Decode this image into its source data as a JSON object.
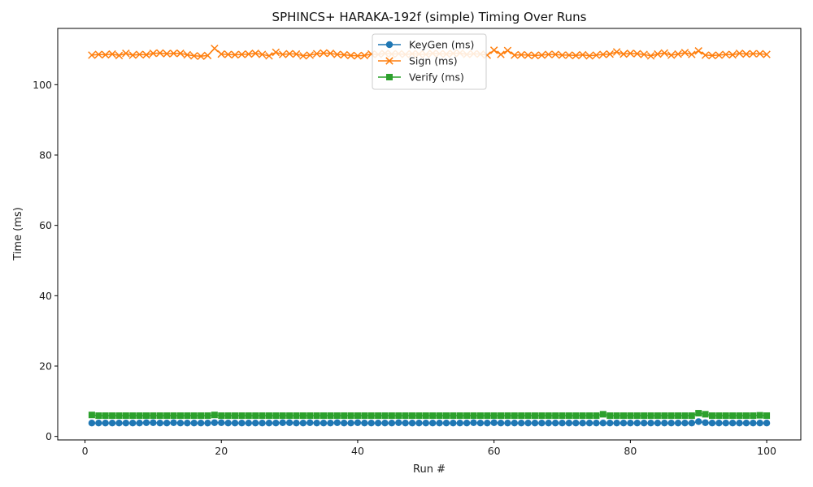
{
  "chart_data": {
    "type": "line",
    "title": "SPHINCS+ HARAKA-192f (simple) Timing Over Runs",
    "xlabel": "Run #",
    "ylabel": "Time (ms)",
    "xlim": [
      -4,
      105
    ],
    "ylim": [
      -1,
      116
    ],
    "xticks": [
      0,
      20,
      40,
      60,
      80,
      100
    ],
    "yticks": [
      0,
      20,
      40,
      60,
      80,
      100
    ],
    "grid": false,
    "legend_position": "top-center",
    "x": [
      1,
      2,
      3,
      4,
      5,
      6,
      7,
      8,
      9,
      10,
      11,
      12,
      13,
      14,
      15,
      16,
      17,
      18,
      19,
      20,
      21,
      22,
      23,
      24,
      25,
      26,
      27,
      28,
      29,
      30,
      31,
      32,
      33,
      34,
      35,
      36,
      37,
      38,
      39,
      40,
      41,
      42,
      43,
      44,
      45,
      46,
      47,
      48,
      49,
      50,
      51,
      52,
      53,
      54,
      55,
      56,
      57,
      58,
      59,
      60,
      61,
      62,
      63,
      64,
      65,
      66,
      67,
      68,
      69,
      70,
      71,
      72,
      73,
      74,
      75,
      76,
      77,
      78,
      79,
      80,
      81,
      82,
      83,
      84,
      85,
      86,
      87,
      88,
      89,
      90,
      91,
      92,
      93,
      94,
      95,
      96,
      97,
      98,
      99,
      100
    ],
    "series": [
      {
        "name": "KeyGen (ms)",
        "color": "#1f77b4",
        "marker": "circle",
        "values": [
          3.8,
          3.8,
          3.8,
          3.8,
          3.8,
          3.8,
          3.8,
          3.8,
          3.9,
          3.9,
          3.8,
          3.8,
          3.9,
          3.8,
          3.8,
          3.8,
          3.8,
          3.8,
          3.9,
          3.9,
          3.8,
          3.8,
          3.8,
          3.8,
          3.8,
          3.8,
          3.8,
          3.8,
          3.9,
          3.9,
          3.8,
          3.8,
          3.9,
          3.8,
          3.8,
          3.8,
          3.9,
          3.8,
          3.8,
          3.9,
          3.8,
          3.8,
          3.8,
          3.8,
          3.8,
          3.9,
          3.8,
          3.8,
          3.8,
          3.8,
          3.8,
          3.8,
          3.8,
          3.8,
          3.8,
          3.8,
          3.9,
          3.8,
          3.8,
          3.9,
          3.8,
          3.8,
          3.8,
          3.8,
          3.8,
          3.8,
          3.8,
          3.8,
          3.8,
          3.8,
          3.8,
          3.8,
          3.8,
          3.8,
          3.8,
          3.8,
          3.8,
          3.8,
          3.8,
          3.8,
          3.8,
          3.8,
          3.8,
          3.8,
          3.8,
          3.8,
          3.8,
          3.8,
          3.8,
          4.2,
          3.9,
          3.8,
          3.8,
          3.8,
          3.8,
          3.8,
          3.8,
          3.8,
          3.8,
          3.8
        ]
      },
      {
        "name": "Sign (ms)",
        "color": "#ff7f0e",
        "marker": "x",
        "values": [
          108.4,
          108.6,
          108.5,
          108.7,
          108.3,
          108.9,
          108.4,
          108.6,
          108.5,
          108.9,
          109.0,
          108.8,
          108.9,
          108.9,
          108.5,
          108.2,
          108.1,
          108.3,
          110.3,
          108.7,
          108.6,
          108.5,
          108.6,
          108.7,
          108.9,
          108.6,
          108.2,
          109.2,
          108.6,
          108.8,
          108.7,
          108.2,
          108.4,
          108.8,
          109.0,
          108.9,
          108.6,
          108.5,
          108.3,
          108.2,
          108.3,
          108.7,
          108.6,
          108.9,
          108.7,
          108.8,
          108.6,
          108.8,
          108.7,
          108.6,
          108.9,
          108.8,
          108.7,
          108.9,
          109.0,
          108.6,
          108.8,
          108.7,
          108.4,
          109.8,
          108.6,
          109.7,
          108.4,
          108.5,
          108.4,
          108.3,
          108.4,
          108.6,
          108.6,
          108.4,
          108.4,
          108.3,
          108.5,
          108.2,
          108.4,
          108.6,
          108.7,
          109.3,
          108.7,
          108.9,
          108.8,
          108.6,
          108.2,
          108.7,
          109.0,
          108.4,
          108.7,
          109.1,
          108.6,
          109.6,
          108.4,
          108.3,
          108.4,
          108.6,
          108.5,
          108.9,
          108.7,
          108.8,
          108.8,
          108.6
        ]
      },
      {
        "name": "Verify (ms)",
        "color": "#2ca02c",
        "marker": "square",
        "values": [
          6.1,
          5.9,
          5.9,
          5.9,
          5.9,
          5.9,
          5.9,
          5.9,
          5.9,
          5.9,
          5.9,
          5.9,
          5.9,
          5.9,
          5.9,
          5.9,
          5.9,
          5.9,
          6.1,
          5.9,
          5.9,
          5.9,
          5.9,
          5.9,
          5.9,
          5.9,
          5.9,
          5.9,
          5.9,
          5.9,
          5.9,
          5.9,
          5.9,
          5.9,
          5.9,
          5.9,
          5.9,
          5.9,
          5.9,
          5.9,
          5.9,
          5.9,
          5.9,
          5.9,
          5.9,
          5.9,
          5.9,
          5.9,
          5.9,
          5.9,
          5.9,
          5.9,
          5.9,
          5.9,
          5.9,
          5.9,
          5.9,
          5.9,
          5.9,
          5.9,
          5.9,
          5.9,
          5.9,
          5.9,
          5.9,
          5.9,
          5.9,
          5.9,
          5.9,
          5.9,
          5.9,
          5.9,
          5.9,
          5.9,
          5.9,
          6.3,
          5.9,
          5.9,
          5.9,
          5.9,
          5.9,
          5.9,
          5.9,
          5.9,
          5.9,
          5.9,
          5.9,
          5.9,
          5.9,
          6.6,
          6.3,
          5.9,
          5.9,
          5.9,
          5.9,
          5.9,
          5.9,
          5.9,
          6.0,
          5.9
        ]
      }
    ]
  }
}
